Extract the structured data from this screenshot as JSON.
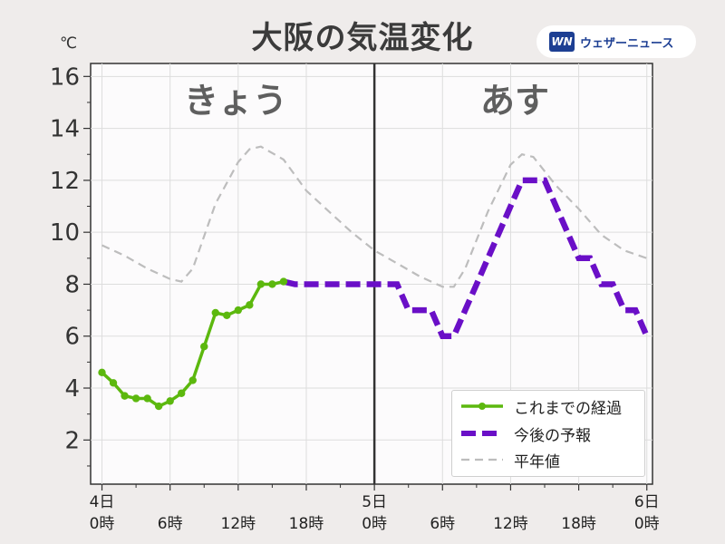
{
  "header": {
    "title": "大阪の気温変化",
    "unit": "℃",
    "logo_mark": "WN",
    "logo_text": "ウェザーニュース"
  },
  "days": {
    "today": "きょう",
    "tomorrow": "あす"
  },
  "chart_data": {
    "type": "line",
    "title": "大阪の気温変化",
    "ylabel": "℃",
    "xlim": [
      -1,
      48.5
    ],
    "ylim": [
      0.3,
      16.5
    ],
    "yticks": [
      2,
      4,
      6,
      8,
      10,
      12,
      14,
      16
    ],
    "xticks": [
      {
        "x": 0,
        "top": "4日",
        "bottom": "0時"
      },
      {
        "x": 6,
        "top": "",
        "bottom": "6時"
      },
      {
        "x": 12,
        "top": "",
        "bottom": "12時"
      },
      {
        "x": 18,
        "top": "",
        "bottom": "18時"
      },
      {
        "x": 24,
        "top": "5日",
        "bottom": "0時"
      },
      {
        "x": 30,
        "top": "",
        "bottom": "6時"
      },
      {
        "x": 36,
        "top": "",
        "bottom": "12時"
      },
      {
        "x": 42,
        "top": "",
        "bottom": "18時"
      },
      {
        "x": 48,
        "top": "6日",
        "bottom": "0時"
      }
    ],
    "day_divider_x": 24,
    "grid": true,
    "legend_position": "bottom-right",
    "series": [
      {
        "name": "これまでの経過",
        "color": "#5cb80e",
        "style": "solid-markers",
        "x": [
          0,
          1,
          2,
          3,
          4,
          5,
          6,
          7,
          8,
          9,
          10,
          11,
          12,
          13,
          14,
          15,
          16
        ],
        "y": [
          4.6,
          4.2,
          3.7,
          3.6,
          3.6,
          3.3,
          3.5,
          3.8,
          4.3,
          5.6,
          6.9,
          6.8,
          7.0,
          7.2,
          8.0,
          8.0,
          8.1
        ]
      },
      {
        "name": "今後の予報",
        "color": "#6a0fc7",
        "style": "dashed-thick",
        "x": [
          16,
          17,
          18,
          19,
          20,
          21,
          22,
          23,
          24,
          25,
          26,
          27,
          28,
          29,
          30,
          31,
          32,
          33,
          34,
          35,
          36,
          37,
          38,
          39,
          40,
          41,
          42,
          43,
          44,
          45,
          46,
          47,
          48
        ],
        "y": [
          8.1,
          8,
          8,
          8,
          8,
          8,
          8,
          8,
          8,
          8,
          8,
          7,
          7,
          7,
          6,
          6,
          7,
          8,
          9,
          10,
          11,
          12,
          12,
          12,
          11,
          10,
          9,
          9,
          8,
          8,
          7,
          7,
          6
        ]
      },
      {
        "name": "平年値",
        "color": "#bdbdbd",
        "style": "dashed-thin",
        "x": [
          0,
          2,
          4,
          6,
          7,
          8,
          10,
          12,
          13,
          14,
          16,
          18,
          20,
          22,
          24,
          26,
          28,
          30,
          31,
          32,
          34,
          36,
          37,
          38,
          40,
          42,
          44,
          46,
          48
        ],
        "y": [
          9.5,
          9.1,
          8.6,
          8.2,
          8.1,
          8.6,
          11.1,
          12.7,
          13.2,
          13.3,
          12.8,
          11.6,
          10.8,
          10,
          9.3,
          8.8,
          8.3,
          7.9,
          7.9,
          8.6,
          10.8,
          12.6,
          13,
          12.9,
          11.8,
          10.9,
          9.9,
          9.3,
          9
        ]
      }
    ]
  }
}
